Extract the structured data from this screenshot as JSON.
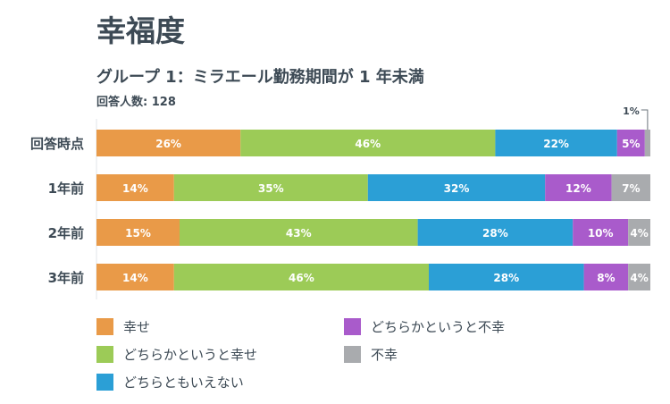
{
  "title": "幸福度",
  "subtitle": "グループ 1：ミラエール勤務期間が 1 年未満",
  "respondents": "回答人数: 128",
  "chart_data": {
    "type": "bar",
    "orientation": "horizontal-stacked-100",
    "categories": [
      "回答時点",
      "1年前",
      "2年前",
      "3年前"
    ],
    "series": [
      {
        "name": "幸せ",
        "color": "#e99a48",
        "values": [
          26,
          14,
          15,
          14
        ]
      },
      {
        "name": "どちらかというと幸せ",
        "color": "#9ccb57",
        "values": [
          46,
          35,
          43,
          46
        ]
      },
      {
        "name": "どちらともいえない",
        "color": "#2b9fd6",
        "values": [
          22,
          32,
          28,
          28
        ]
      },
      {
        "name": "どちらかというと不幸",
        "color": "#a95bcb",
        "values": [
          5,
          12,
          10,
          8
        ]
      },
      {
        "name": "不幸",
        "color": "#a9abae",
        "values": [
          1,
          7,
          4,
          4
        ]
      }
    ],
    "unit": "%",
    "legend_position": "bottom"
  }
}
